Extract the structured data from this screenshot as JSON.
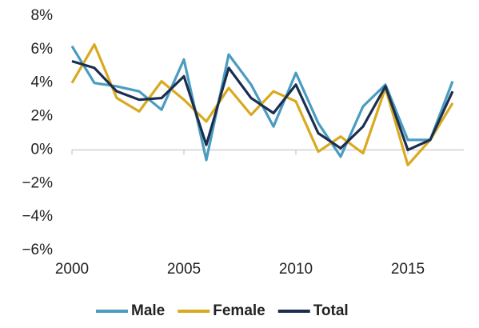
{
  "chart_data": {
    "type": "line",
    "x": [
      2000,
      2001,
      2002,
      2003,
      2004,
      2005,
      2006,
      2007,
      2008,
      2009,
      2010,
      2011,
      2012,
      2013,
      2014,
      2015,
      2016,
      2017
    ],
    "series": [
      {
        "name": "Male",
        "color": "#4a9cc0",
        "values": [
          6.2,
          4.0,
          3.8,
          3.5,
          2.4,
          5.4,
          -0.6,
          5.7,
          3.9,
          1.4,
          4.6,
          1.6,
          -0.4,
          2.6,
          3.9,
          0.6,
          0.6,
          4.1
        ]
      },
      {
        "name": "Female",
        "color": "#d9a91f",
        "values": [
          4.0,
          6.3,
          3.1,
          2.3,
          4.1,
          3.0,
          1.7,
          3.7,
          2.1,
          3.5,
          2.9,
          -0.1,
          0.8,
          -0.2,
          3.7,
          -0.9,
          0.6,
          2.8
        ]
      },
      {
        "name": "Total",
        "color": "#1a2e4f",
        "values": [
          5.3,
          4.9,
          3.5,
          3.0,
          3.1,
          4.4,
          0.3,
          4.9,
          3.1,
          2.2,
          3.9,
          1.0,
          0.1,
          1.4,
          3.8,
          0.0,
          0.6,
          3.5
        ]
      }
    ],
    "xlim": [
      2000,
      2017
    ],
    "xticks": [
      2000,
      2005,
      2010,
      2015
    ],
    "ylim": [
      -6,
      8
    ],
    "yticks": [
      {
        "value": -6,
        "label": "−6%"
      },
      {
        "value": -4,
        "label": "−4%"
      },
      {
        "value": -2,
        "label": "−2%"
      },
      {
        "value": 0,
        "label": "0%"
      },
      {
        "value": 2,
        "label": "2%"
      },
      {
        "value": 4,
        "label": "4%"
      },
      {
        "value": 6,
        "label": "6%"
      },
      {
        "value": 8,
        "label": "8%"
      }
    ],
    "legend": "bottom",
    "grid": false
  }
}
